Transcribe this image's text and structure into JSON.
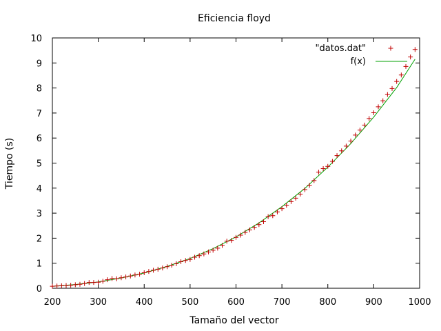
{
  "chart_data": {
    "type": "scatter",
    "title": "Eficiencia floyd",
    "xlabel": "Tamaño del vector",
    "ylabel": "Tiempo (s)",
    "xlim": [
      200,
      1000
    ],
    "ylim": [
      0,
      10
    ],
    "xticks": [
      200,
      300,
      400,
      500,
      600,
      700,
      800,
      900,
      1000
    ],
    "yticks": [
      0,
      1,
      2,
      3,
      4,
      5,
      6,
      7,
      8,
      9,
      10
    ],
    "grid": false,
    "legend_position": "top-right",
    "series": [
      {
        "name": "\"datos.dat\"",
        "kind": "points",
        "marker": "+",
        "color": "#c00000",
        "x": [
          200,
          210,
          220,
          230,
          240,
          250,
          260,
          270,
          280,
          290,
          300,
          310,
          320,
          330,
          340,
          350,
          360,
          370,
          380,
          390,
          400,
          410,
          420,
          430,
          440,
          450,
          460,
          470,
          480,
          490,
          500,
          510,
          520,
          530,
          540,
          550,
          560,
          570,
          580,
          590,
          600,
          610,
          620,
          630,
          640,
          650,
          660,
          670,
          680,
          690,
          700,
          710,
          720,
          730,
          740,
          750,
          760,
          770,
          780,
          790,
          800,
          810,
          820,
          830,
          840,
          850,
          860,
          870,
          880,
          890,
          900,
          910,
          920,
          930,
          940,
          950,
          960,
          970,
          980,
          990
        ],
        "y": [
          0.08,
          0.09,
          0.1,
          0.11,
          0.12,
          0.14,
          0.16,
          0.19,
          0.23,
          0.23,
          0.24,
          0.28,
          0.34,
          0.39,
          0.38,
          0.42,
          0.45,
          0.49,
          0.53,
          0.56,
          0.62,
          0.67,
          0.72,
          0.76,
          0.81,
          0.86,
          0.92,
          0.98,
          1.06,
          1.11,
          1.15,
          1.24,
          1.3,
          1.37,
          1.45,
          1.52,
          1.6,
          1.71,
          1.88,
          1.91,
          2.03,
          2.12,
          2.23,
          2.33,
          2.43,
          2.54,
          2.66,
          2.86,
          2.9,
          3.05,
          3.18,
          3.32,
          3.46,
          3.6,
          3.76,
          3.94,
          4.11,
          4.3,
          4.64,
          4.78,
          4.87,
          5.07,
          5.3,
          5.49,
          5.68,
          5.88,
          6.12,
          6.32,
          6.52,
          6.78,
          7.01,
          7.25,
          7.49,
          7.74,
          7.98,
          8.26,
          8.52,
          8.86,
          9.24,
          9.54
        ]
      },
      {
        "name": "f(x)",
        "kind": "line",
        "color": "#00a000",
        "x": [
          200,
          250,
          300,
          350,
          400,
          450,
          500,
          550,
          600,
          650,
          700,
          750,
          800,
          850,
          900,
          950,
          990
        ],
        "y": [
          0.08,
          0.15,
          0.25,
          0.41,
          0.61,
          0.87,
          1.19,
          1.58,
          2.05,
          2.61,
          3.26,
          3.99,
          4.84,
          5.78,
          6.84,
          8.02,
          9.15
        ]
      }
    ]
  }
}
